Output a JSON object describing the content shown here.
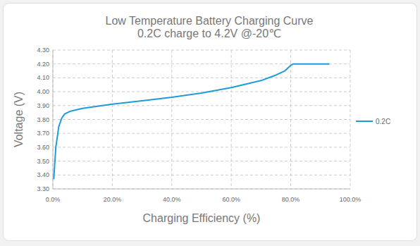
{
  "chart_data": {
    "type": "line",
    "title": "Low Temperature Battery Charging Curve",
    "subtitle": "0.2C charge to 4.2V @-20℃",
    "x_label": "Charging Efficiency (%)",
    "y_label": "Voltage (V)",
    "x": [
      0.3,
      1,
      2,
      3,
      4,
      5,
      6,
      10,
      20,
      30,
      40,
      50,
      60,
      70,
      75,
      78,
      80,
      81,
      93
    ],
    "series": [
      {
        "name": "0.2C",
        "color": "#1e9bdb",
        "values": [
          3.37,
          3.6,
          3.75,
          3.81,
          3.84,
          3.85,
          3.86,
          3.88,
          3.91,
          3.935,
          3.96,
          3.99,
          4.03,
          4.08,
          4.12,
          4.15,
          4.19,
          4.2,
          4.2
        ]
      }
    ],
    "xlim": [
      0,
      100
    ],
    "xticks": [
      {
        "value": 0,
        "label": "0.0%"
      },
      {
        "value": 20,
        "label": "20.0%"
      },
      {
        "value": 40,
        "label": "40.0%"
      },
      {
        "value": 60,
        "label": "60.0%"
      },
      {
        "value": 80,
        "label": "80.0%"
      },
      {
        "value": 100,
        "label": "100.0%"
      }
    ],
    "ylim": [
      3.3,
      4.3
    ],
    "yticks": [
      {
        "value": 3.3,
        "label": "3.30"
      },
      {
        "value": 3.4,
        "label": "3.40"
      },
      {
        "value": 3.5,
        "label": "3.50"
      },
      {
        "value": 3.6,
        "label": "3.60"
      },
      {
        "value": 3.7,
        "label": "3.70"
      },
      {
        "value": 3.8,
        "label": "3.80"
      },
      {
        "value": 3.9,
        "label": "3.90"
      },
      {
        "value": 4.0,
        "label": "4.00"
      },
      {
        "value": 4.1,
        "label": "4.10"
      },
      {
        "value": 4.2,
        "label": "4.20"
      },
      {
        "value": 4.3,
        "label": "4.30"
      }
    ],
    "grid": true,
    "legend": "right"
  }
}
